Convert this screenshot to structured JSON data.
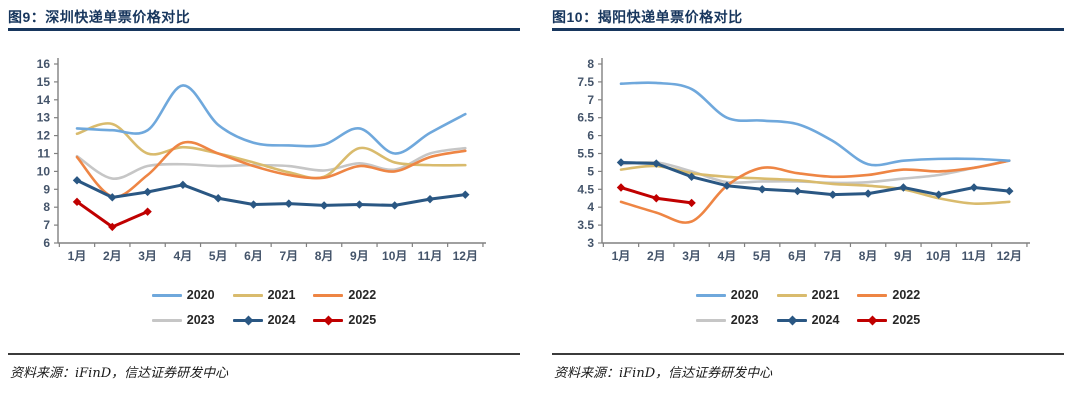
{
  "figures": [
    {
      "id": "figure-9",
      "title": "图9：深圳快递单票价格对比",
      "source": "资料来源：iFinD，信达证券研发中心"
    },
    {
      "id": "figure-10",
      "title": "图10：揭阳快递单票价格对比",
      "source": "资料来源：iFinD，信达证券研发中心"
    }
  ],
  "colors": {
    "title": "#17365D",
    "title_rule": "#17365D",
    "axis_line": "#808080",
    "axis_label": "#44546A",
    "divider": "#3B3B3B",
    "source_text": "#1A1A1A"
  },
  "chart_data": [
    {
      "type": "line",
      "title": "深圳快递单票价格对比",
      "x_categories": [
        "1月",
        "2月",
        "3月",
        "4月",
        "5月",
        "6月",
        "7月",
        "8月",
        "9月",
        "10月",
        "11月",
        "12月"
      ],
      "ylim": [
        6,
        16
      ],
      "ytick_step": 1,
      "grid": false,
      "legend_position": "bottom",
      "series": [
        {
          "name": "2020",
          "color": "#6FA8DC",
          "width": 2.6,
          "values": [
            12.4,
            12.3,
            12.3,
            14.8,
            12.6,
            11.6,
            11.45,
            11.5,
            12.4,
            11.0,
            12.15,
            13.2
          ]
        },
        {
          "name": "2021",
          "color": "#D9BB6D",
          "width": 2.6,
          "values": [
            12.1,
            12.65,
            11.0,
            11.35,
            11.0,
            10.5,
            9.95,
            9.7,
            11.3,
            10.5,
            10.35,
            10.35
          ]
        },
        {
          "name": "2022",
          "color": "#EE8544",
          "width": 2.6,
          "values": [
            10.8,
            8.6,
            9.8,
            11.6,
            11.0,
            10.3,
            9.8,
            9.65,
            10.3,
            10.0,
            10.8,
            11.15
          ]
        },
        {
          "name": "2023",
          "color": "#C6C6C6",
          "width": 2.6,
          "values": [
            10.85,
            9.6,
            10.3,
            10.4,
            10.3,
            10.35,
            10.3,
            10.05,
            10.45,
            10.1,
            11.0,
            11.3
          ]
        },
        {
          "name": "2024",
          "color": "#2A5783",
          "width": 3,
          "marker": "diamond",
          "values": [
            9.5,
            8.55,
            8.85,
            9.25,
            8.5,
            8.15,
            8.2,
            8.1,
            8.15,
            8.1,
            8.45,
            8.7
          ]
        },
        {
          "name": "2025",
          "color": "#C00000",
          "width": 3,
          "marker": "diamond",
          "values": [
            8.3,
            6.9,
            7.75
          ]
        }
      ]
    },
    {
      "type": "line",
      "title": "揭阳快递单票价格对比",
      "x_categories": [
        "1月",
        "2月",
        "3月",
        "4月",
        "5月",
        "6月",
        "7月",
        "8月",
        "9月",
        "10月",
        "11月",
        "12月"
      ],
      "ylim": [
        3,
        8
      ],
      "ytick_step": 0.5,
      "grid": false,
      "legend_position": "bottom",
      "series": [
        {
          "name": "2020",
          "color": "#6FA8DC",
          "width": 2.6,
          "values": [
            7.45,
            7.47,
            7.3,
            6.5,
            6.42,
            6.32,
            5.85,
            5.2,
            5.3,
            5.35,
            5.35,
            5.3
          ]
        },
        {
          "name": "2021",
          "color": "#D9BB6D",
          "width": 2.6,
          "values": [
            5.05,
            5.15,
            4.95,
            4.85,
            4.8,
            4.75,
            4.65,
            4.6,
            4.5,
            4.25,
            4.1,
            4.15
          ]
        },
        {
          "name": "2022",
          "color": "#EE8544",
          "width": 2.6,
          "values": [
            4.15,
            3.85,
            3.6,
            4.6,
            5.1,
            4.95,
            4.85,
            4.9,
            5.05,
            5.0,
            5.1,
            5.3
          ]
        },
        {
          "name": "2023",
          "color": "#C6C6C6",
          "width": 2.6,
          "values": [
            5.2,
            5.25,
            5.0,
            4.7,
            4.72,
            4.72,
            4.68,
            4.7,
            4.8,
            4.9,
            5.1,
            5.3
          ]
        },
        {
          "name": "2024",
          "color": "#2A5783",
          "width": 3,
          "marker": "diamond",
          "values": [
            5.25,
            5.22,
            4.85,
            4.6,
            4.5,
            4.45,
            4.35,
            4.38,
            4.55,
            4.35,
            4.55,
            4.45
          ]
        },
        {
          "name": "2025",
          "color": "#C00000",
          "width": 3,
          "marker": "diamond",
          "values": [
            4.55,
            4.25,
            4.12
          ]
        }
      ]
    }
  ]
}
